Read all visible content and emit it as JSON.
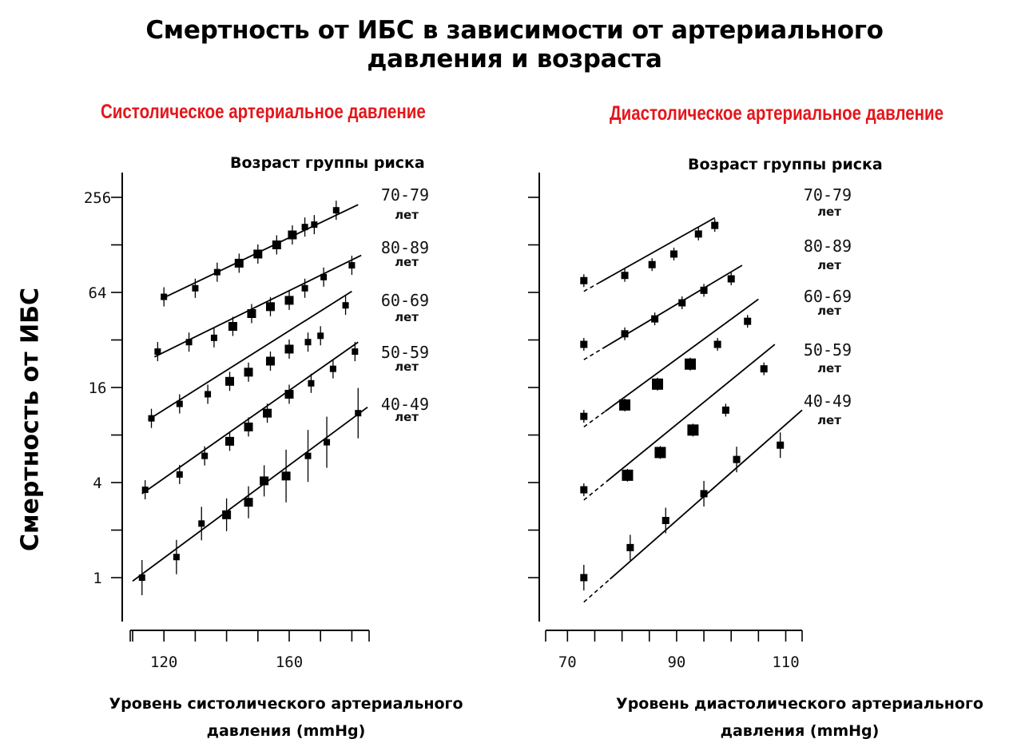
{
  "title_line1": "Смертность от ИБС в зависимости от артериального",
  "title_line2": "давления и возраста",
  "ylabel": "Смертность от ИБС",
  "colors": {
    "subtitle": "#e3161b",
    "ink": "#000000"
  },
  "chart_data": [
    {
      "type": "scatter",
      "title": "Систолическое артериальное давление",
      "legend_title": "Возраст группы риска",
      "xlabel_line1": "Уровень систолического артериального",
      "xlabel_line2": "давления (mmHg)",
      "y_scale": "log2",
      "ylim": [
        0.5,
        362
      ],
      "y_ticks": [
        1,
        4,
        16,
        64,
        256
      ],
      "xlim": [
        110,
        185
      ],
      "x_ticks": [
        120,
        160
      ],
      "grid": false,
      "series": [
        {
          "name": "40-49",
          "unit": "лет",
          "fit": [
            [
              110,
              0.95
            ],
            [
              185,
              12.0
            ]
          ],
          "points": [
            [
              113,
              1.0
            ],
            [
              124,
              1.35
            ],
            [
              132,
              2.2
            ],
            [
              140,
              2.5
            ],
            [
              147,
              3.0
            ],
            [
              152,
              4.1
            ],
            [
              159,
              4.4
            ],
            [
              166,
              5.9
            ],
            [
              172,
              7.2
            ],
            [
              182,
              11.0
            ]
          ]
        },
        {
          "name": "50-59",
          "unit": "лет",
          "fit": [
            [
              113,
              3.4
            ],
            [
              182,
              31.0
            ]
          ],
          "points": [
            [
              114,
              3.6
            ],
            [
              125,
              4.5
            ],
            [
              133,
              5.9
            ],
            [
              141,
              7.3
            ],
            [
              147,
              9.0
            ],
            [
              153,
              11.0
            ],
            [
              160,
              14.5
            ],
            [
              167,
              17.0
            ],
            [
              174,
              21.0
            ],
            [
              181,
              27.0
            ]
          ]
        },
        {
          "name": "60-69",
          "unit": "лет",
          "fit": [
            [
              115,
              10.0
            ],
            [
              180,
              65.0
            ]
          ],
          "points": [
            [
              116,
              10.2
            ],
            [
              125,
              12.6
            ],
            [
              134,
              14.5
            ],
            [
              141,
              17.5
            ],
            [
              147,
              20.0
            ],
            [
              154,
              23.5
            ],
            [
              160,
              28.0
            ],
            [
              166,
              31.0
            ],
            [
              170,
              34.0
            ],
            [
              178,
              53.0
            ]
          ]
        },
        {
          "name": "70-79",
          "unit": "лет",
          "fit": [
            [
              117,
              25.0
            ],
            [
              183,
              110.0
            ]
          ],
          "points": [
            [
              118,
              27.0
            ],
            [
              128,
              31.0
            ],
            [
              136,
              33.0
            ],
            [
              142,
              39.0
            ],
            [
              148,
              47.0
            ],
            [
              154,
              52.0
            ],
            [
              160,
              57.0
            ],
            [
              165,
              68.0
            ],
            [
              171,
              80.0
            ],
            [
              180,
              95.0
            ]
          ]
        },
        {
          "name": "80-89",
          "unit": "лет",
          "fit": [
            [
              119,
              58.0
            ],
            [
              182,
              230.0
            ]
          ],
          "points": [
            [
              120,
              60.0
            ],
            [
              130,
              68.0
            ],
            [
              137,
              86.0
            ],
            [
              144,
              98.0
            ],
            [
              150,
              112.0
            ],
            [
              156,
              128.0
            ],
            [
              161,
              148.0
            ],
            [
              165,
              166.0
            ],
            [
              168,
              172.0
            ],
            [
              175,
              212.0
            ]
          ]
        }
      ]
    },
    {
      "type": "scatter",
      "title": "Диастолическое артериальное давление",
      "legend_title": "Возраст группы риска",
      "xlabel_line1": "Уровень диастолического артериального",
      "xlabel_line2": "давления (mmHg)",
      "y_scale": "log2",
      "ylim": [
        0.5,
        362
      ],
      "y_ticks": [
        1,
        4,
        16,
        64,
        256
      ],
      "xlim": [
        66,
        113
      ],
      "x_ticks": [
        70,
        90,
        110
      ],
      "grid": false,
      "series": [
        {
          "name": "40-49",
          "unit": "лет",
          "fit": [
            [
              73,
              0.7
            ],
            [
              113,
              11.5
            ]
          ],
          "points": [
            [
              73,
              1.0
            ],
            [
              81.5,
              1.55
            ],
            [
              88,
              2.3
            ],
            [
              95,
              3.4
            ],
            [
              101,
              5.6
            ],
            [
              109,
              6.9
            ]
          ]
        },
        {
          "name": "50-59",
          "unit": "лет",
          "fit": [
            [
              73,
              3.1
            ],
            [
              108,
              30.0
            ]
          ],
          "points": [
            [
              73,
              3.6
            ],
            [
              81,
              4.45
            ],
            [
              87,
              6.2
            ],
            [
              93,
              8.6
            ],
            [
              99,
              11.5
            ],
            [
              106,
              21.0
            ]
          ]
        },
        {
          "name": "60-69",
          "unit": "лет",
          "fit": [
            [
              73,
              9.0
            ],
            [
              105,
              58.0
            ]
          ],
          "points": [
            [
              73,
              10.5
            ],
            [
              80.5,
              12.4
            ],
            [
              86.5,
              16.8
            ],
            [
              92.5,
              22.5
            ],
            [
              97.5,
              30.0
            ],
            [
              103,
              42.0
            ]
          ]
        },
        {
          "name": "70-79",
          "unit": "лет",
          "fit": [
            [
              73,
              24.0
            ],
            [
              102,
              95.0
            ]
          ],
          "points": [
            [
              73,
              30.0
            ],
            [
              80.5,
              35.0
            ],
            [
              86,
              43.5
            ],
            [
              91,
              55.0
            ],
            [
              95,
              66.0
            ],
            [
              100,
              78.0
            ]
          ]
        },
        {
          "name": "80-89",
          "unit": "лет",
          "fit": [
            [
              73,
              65.0
            ],
            [
              97,
              190.0
            ]
          ],
          "points": [
            [
              73,
              76.0
            ],
            [
              80.5,
              82.0
            ],
            [
              85.5,
              96.0
            ],
            [
              89.5,
              112.0
            ],
            [
              94,
              150.0
            ],
            [
              97,
              170.0
            ]
          ]
        }
      ]
    }
  ]
}
